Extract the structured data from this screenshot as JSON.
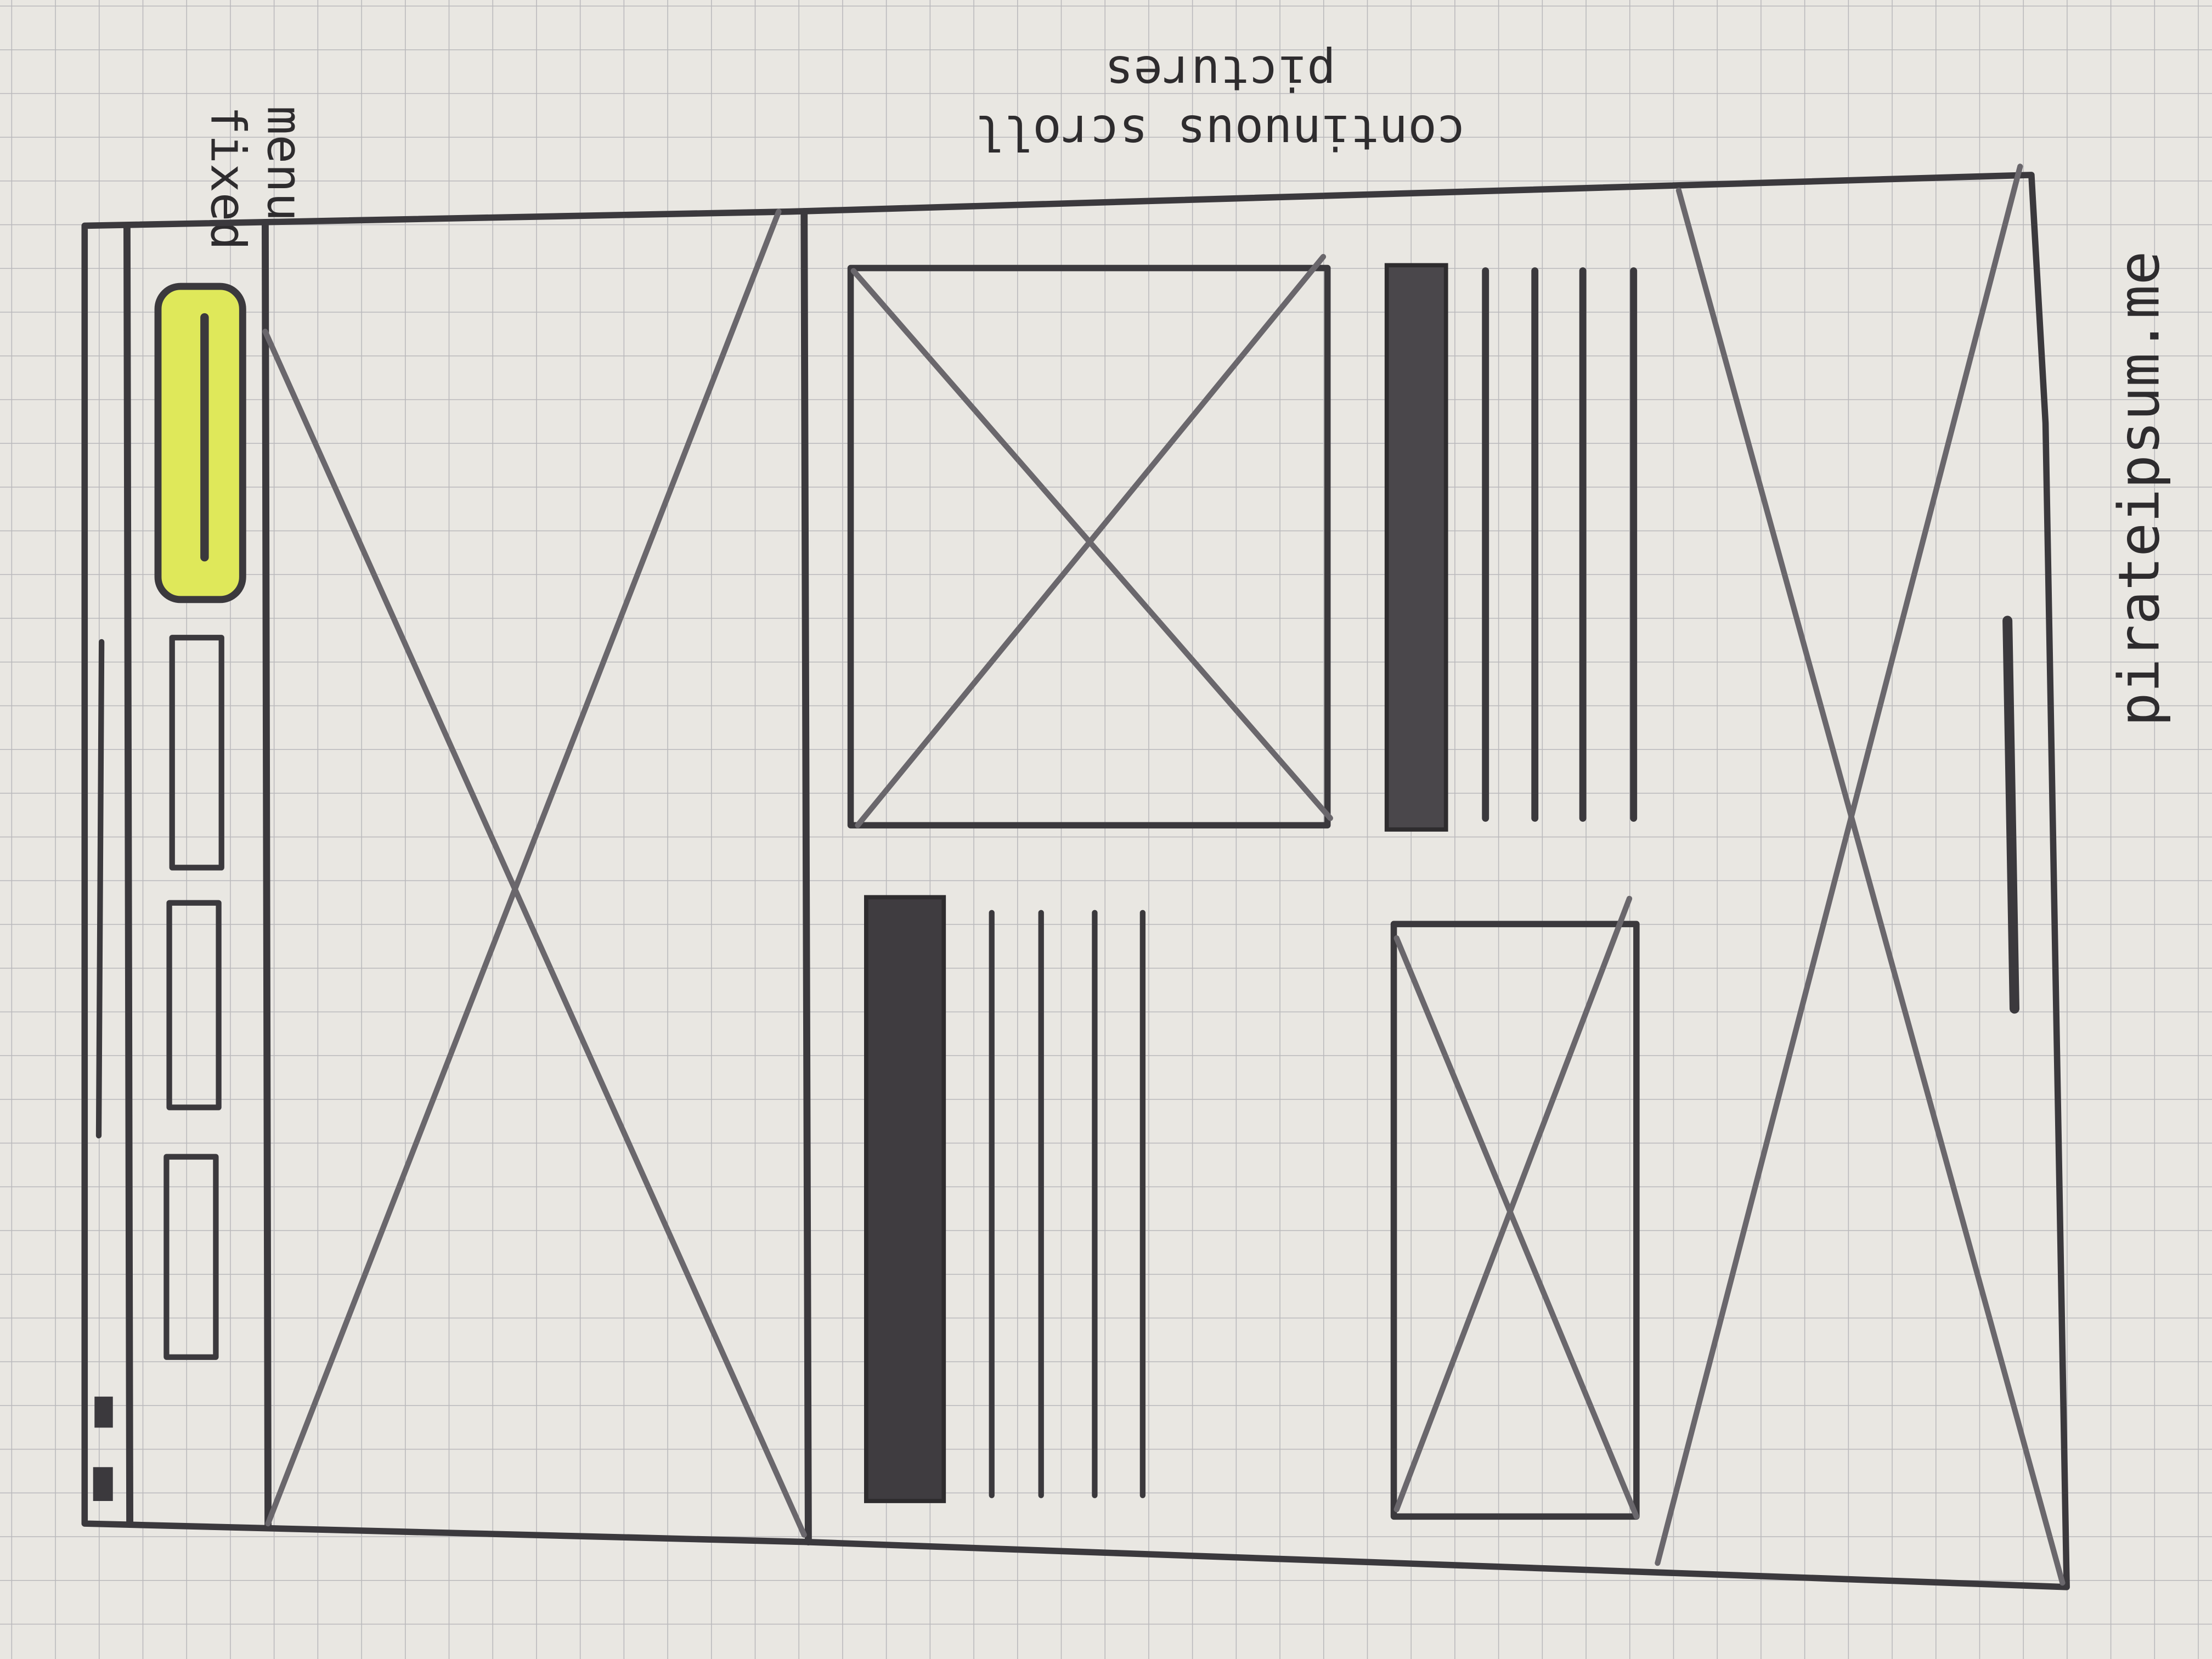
{
  "annotations": {
    "fixed_menu": [
      "fixed",
      "menu"
    ],
    "continuous_scroll": [
      "continuous scroll",
      "pictures"
    ],
    "site": "pirateipsum.me"
  }
}
